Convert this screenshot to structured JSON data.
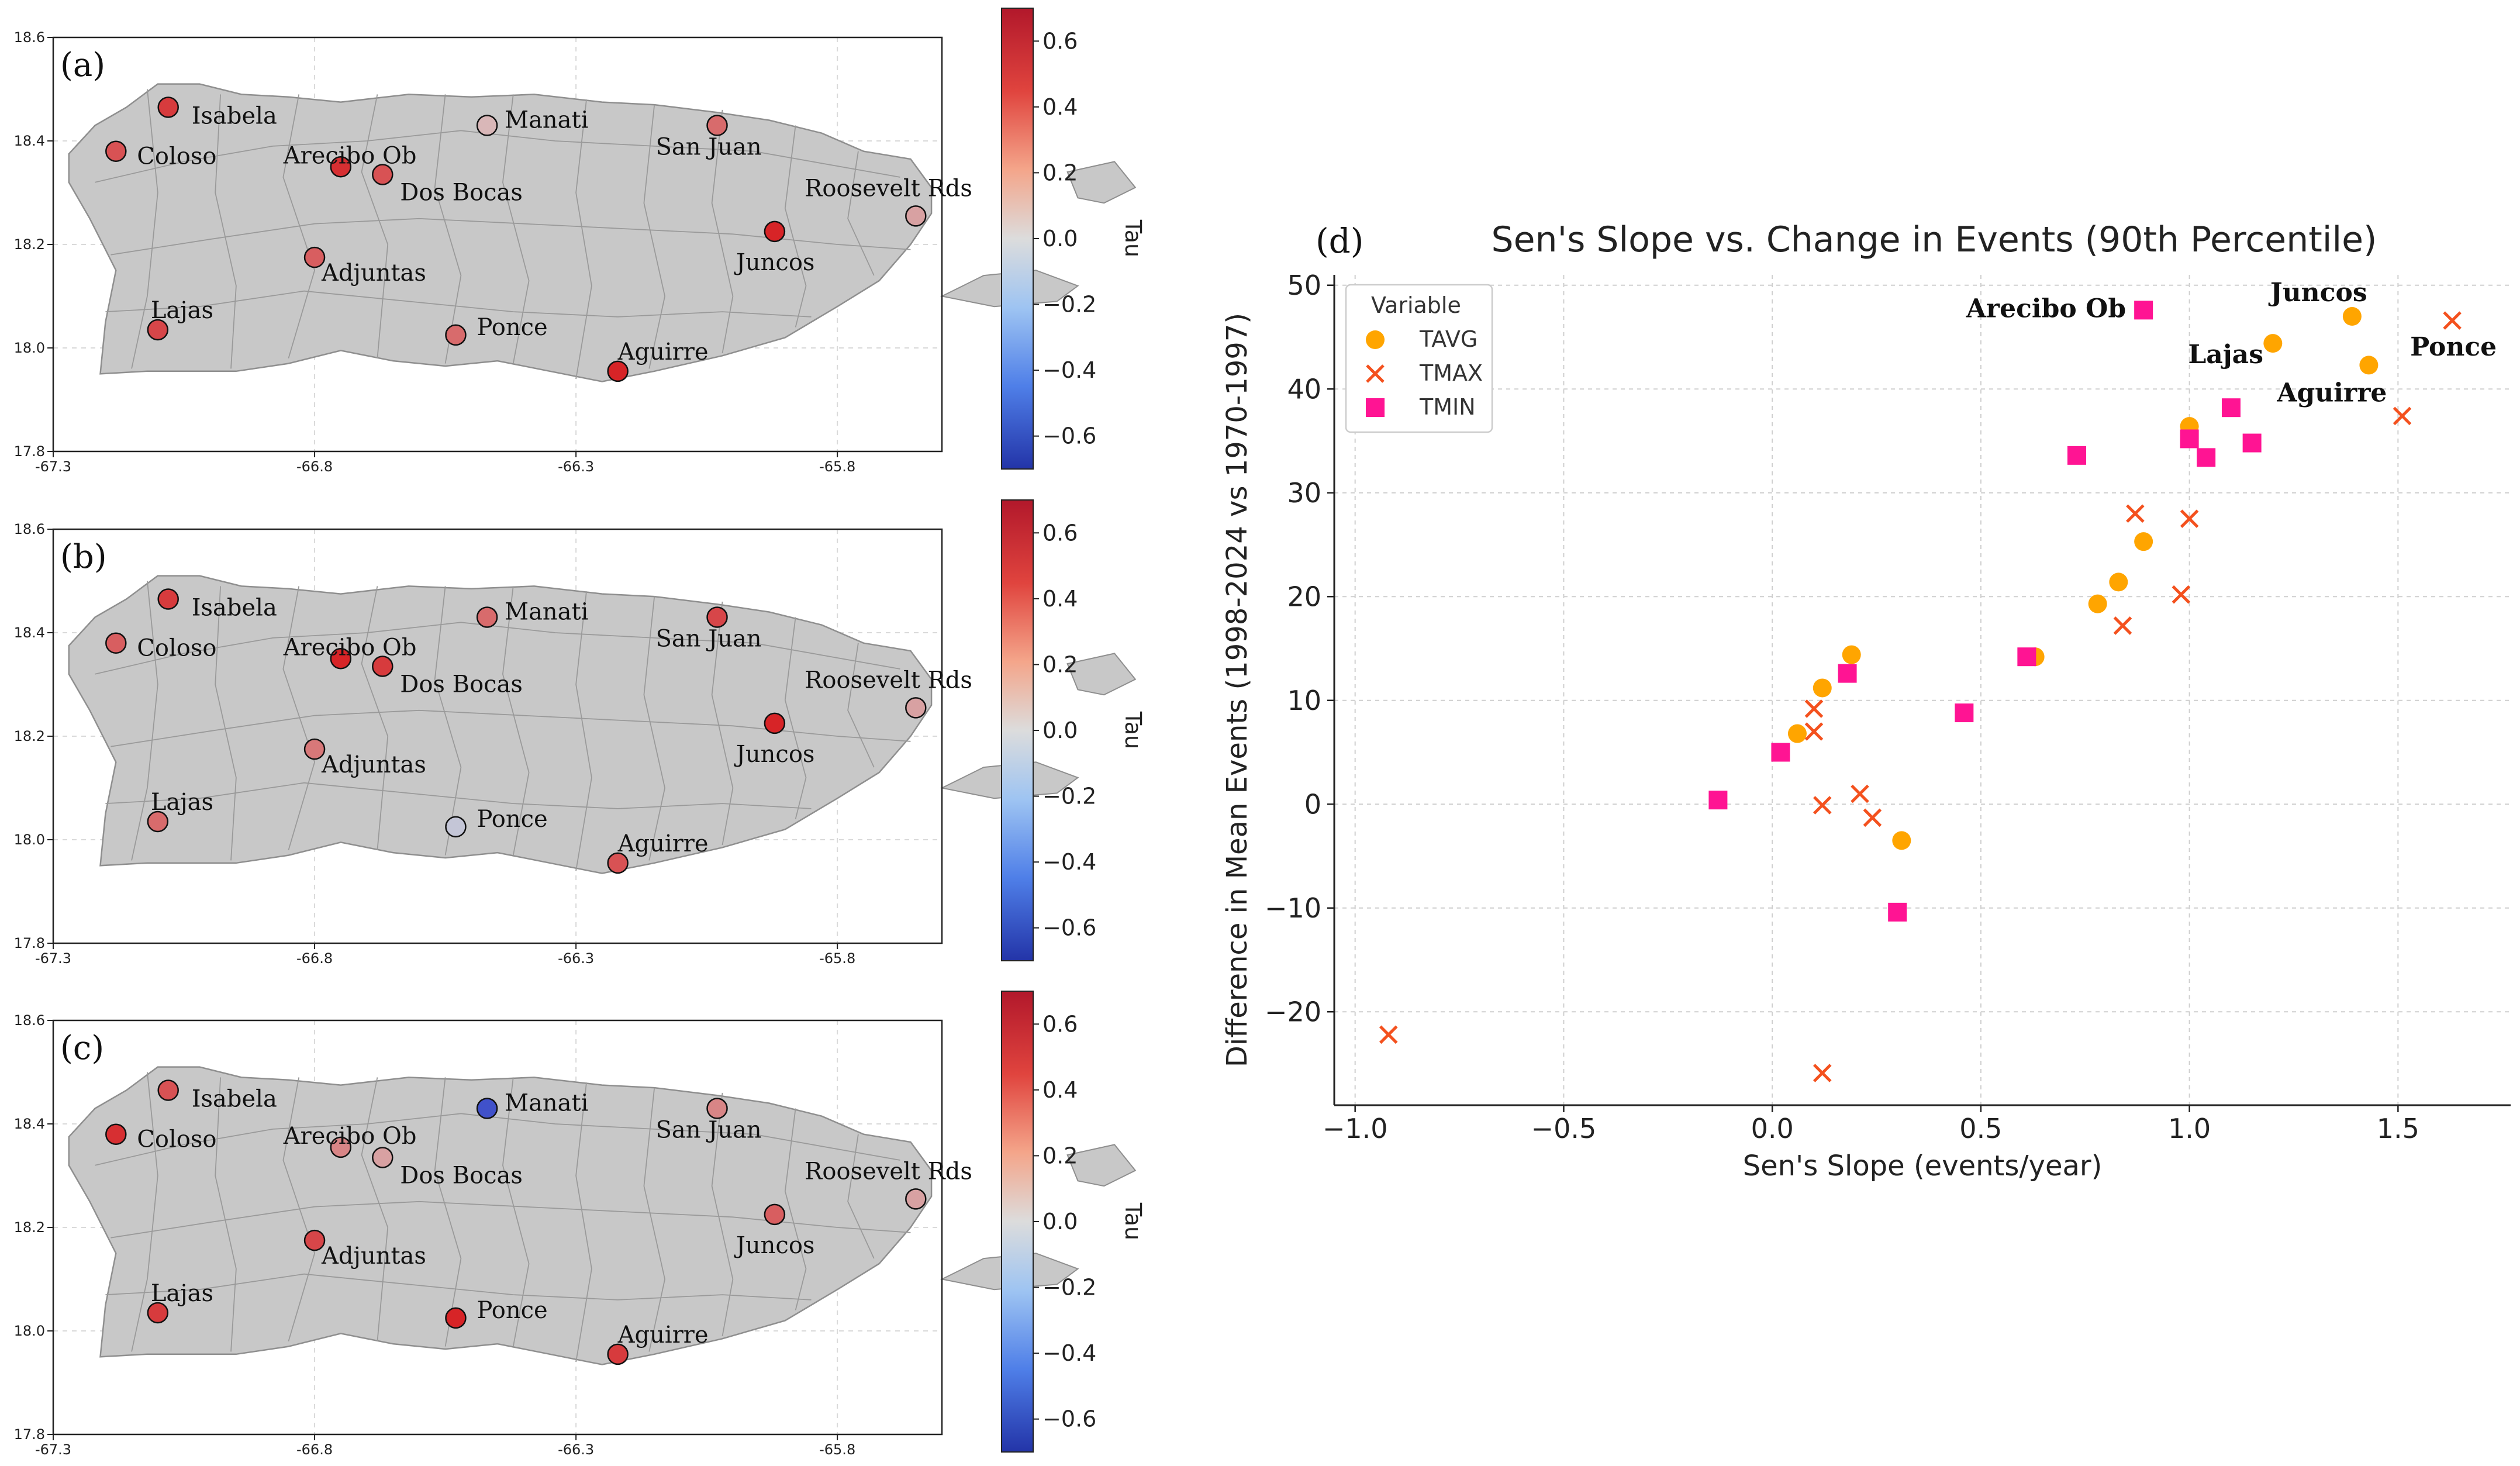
{
  "maps": {
    "lon_ticks": [
      "-67.3",
      "-66.8",
      "-66.3",
      "-65.8"
    ],
    "lat_ticks": [
      "17.8",
      "18.0",
      "18.2",
      "18.4",
      "18.6"
    ],
    "lon_range": [
      -67.3,
      -65.6
    ],
    "lat_range": [
      17.8,
      18.6
    ],
    "colorbar": {
      "label": "Tau",
      "ticks": [
        "0.6",
        "0.4",
        "0.2",
        "0.0",
        "−0.2",
        "−0.4",
        "−0.6"
      ],
      "range": [
        -0.7,
        0.7
      ],
      "colors": {
        "pos": "#d7191c",
        "mid": "#d9d9d9",
        "neg": "#2c3fc8"
      }
    },
    "panels": [
      {
        "label": "(a)",
        "stations": [
          {
            "name": "Isabela",
            "lon": -67.08,
            "lat": 18.465,
            "tau": 0.55
          },
          {
            "name": "Coloso",
            "lon": -67.18,
            "lat": 18.38,
            "tau": 0.45
          },
          {
            "name": "Arecibo Ob",
            "lon": -66.75,
            "lat": 18.35,
            "tau": 0.6
          },
          {
            "name": "Dos Bocas",
            "lon": -66.67,
            "lat": 18.335,
            "tau": 0.45
          },
          {
            "name": "Manati",
            "lon": -66.47,
            "lat": 18.43,
            "tau": 0.08
          },
          {
            "name": "San Juan",
            "lon": -66.03,
            "lat": 18.43,
            "tau": 0.35
          },
          {
            "name": "Roosevelt Rds",
            "lon": -65.65,
            "lat": 18.255,
            "tau": 0.15
          },
          {
            "name": "Juncos",
            "lon": -65.92,
            "lat": 18.225,
            "tau": 0.65
          },
          {
            "name": "Adjuntas",
            "lon": -66.8,
            "lat": 18.175,
            "tau": 0.4
          },
          {
            "name": "Lajas",
            "lon": -67.1,
            "lat": 18.035,
            "tau": 0.5
          },
          {
            "name": "Ponce",
            "lon": -66.53,
            "lat": 18.025,
            "tau": 0.35
          },
          {
            "name": "Aguirre",
            "lon": -66.22,
            "lat": 17.955,
            "tau": 0.65
          }
        ]
      },
      {
        "label": "(b)",
        "stations": [
          {
            "name": "Isabela",
            "lon": -67.08,
            "lat": 18.465,
            "tau": 0.55
          },
          {
            "name": "Coloso",
            "lon": -67.18,
            "lat": 18.38,
            "tau": 0.4
          },
          {
            "name": "Arecibo Ob",
            "lon": -66.75,
            "lat": 18.35,
            "tau": 0.65
          },
          {
            "name": "Dos Bocas",
            "lon": -66.67,
            "lat": 18.335,
            "tau": 0.55
          },
          {
            "name": "Manati",
            "lon": -66.47,
            "lat": 18.43,
            "tau": 0.35
          },
          {
            "name": "San Juan",
            "lon": -66.03,
            "lat": 18.43,
            "tau": 0.5
          },
          {
            "name": "Roosevelt Rds",
            "lon": -65.65,
            "lat": 18.255,
            "tau": 0.15
          },
          {
            "name": "Juncos",
            "lon": -65.92,
            "lat": 18.225,
            "tau": 0.65
          },
          {
            "name": "Adjuntas",
            "lon": -66.8,
            "lat": 18.175,
            "tau": 0.3
          },
          {
            "name": "Lajas",
            "lon": -67.1,
            "lat": 18.035,
            "tau": 0.35
          },
          {
            "name": "Ponce",
            "lon": -66.53,
            "lat": 18.025,
            "tau": -0.05
          },
          {
            "name": "Aguirre",
            "lon": -66.22,
            "lat": 17.955,
            "tau": 0.45
          }
        ]
      },
      {
        "label": "(c)",
        "stations": [
          {
            "name": "Isabela",
            "lon": -67.08,
            "lat": 18.465,
            "tau": 0.45
          },
          {
            "name": "Coloso",
            "lon": -67.18,
            "lat": 18.38,
            "tau": 0.6
          },
          {
            "name": "Arecibo Ob",
            "lon": -66.75,
            "lat": 18.355,
            "tau": 0.25
          },
          {
            "name": "Dos Bocas",
            "lon": -66.67,
            "lat": 18.335,
            "tau": 0.15
          },
          {
            "name": "Manati",
            "lon": -66.47,
            "lat": 18.43,
            "tau": -0.6
          },
          {
            "name": "San Juan",
            "lon": -66.03,
            "lat": 18.43,
            "tau": 0.25
          },
          {
            "name": "Roosevelt Rds",
            "lon": -65.65,
            "lat": 18.255,
            "tau": 0.15
          },
          {
            "name": "Juncos",
            "lon": -65.92,
            "lat": 18.225,
            "tau": 0.4
          },
          {
            "name": "Adjuntas",
            "lon": -66.8,
            "lat": 18.175,
            "tau": 0.5
          },
          {
            "name": "Lajas",
            "lon": -67.1,
            "lat": 18.035,
            "tau": 0.55
          },
          {
            "name": "Ponce",
            "lon": -66.53,
            "lat": 18.025,
            "tau": 0.65
          },
          {
            "name": "Aguirre",
            "lon": -66.22,
            "lat": 17.955,
            "tau": 0.55
          }
        ]
      }
    ]
  },
  "chart_data": {
    "type": "scatter",
    "panel_label": "(d)",
    "title": "Sen's Slope vs. Change in Events (90th Percentile)",
    "xlabel": "Sen's Slope (events/year)",
    "ylabel": "Difference in Mean Events (1998-2024 vs 1970-1997)",
    "xlim": [
      -1.05,
      1.77
    ],
    "ylim": [
      -29,
      51
    ],
    "xticks": [
      -1.0,
      -0.5,
      0.0,
      0.5,
      1.0,
      1.5
    ],
    "xtick_labels": [
      "−1.0",
      "−0.5",
      "0.0",
      "0.5",
      "1.0",
      "1.5"
    ],
    "yticks": [
      -20,
      -10,
      0,
      10,
      20,
      30,
      40,
      50
    ],
    "ytick_labels": [
      "−20",
      "−10",
      "0",
      "10",
      "20",
      "30",
      "40",
      "50"
    ],
    "grid": true,
    "legend": {
      "title": "Variable",
      "position": "top-left"
    },
    "series": [
      {
        "name": "TAVG",
        "marker": "circle",
        "color": "#ffa500",
        "points": [
          [
            0.06,
            6.8
          ],
          [
            0.12,
            11.2
          ],
          [
            0.19,
            14.4
          ],
          [
            0.31,
            -3.5
          ],
          [
            0.63,
            14.2
          ],
          [
            0.78,
            19.3
          ],
          [
            0.83,
            21.4
          ],
          [
            0.89,
            25.3
          ],
          [
            1.0,
            36.4
          ],
          [
            1.2,
            44.4
          ],
          [
            1.39,
            47.0
          ],
          [
            1.43,
            42.3
          ]
        ]
      },
      {
        "name": "TMAX",
        "marker": "x",
        "color": "#f4511e",
        "points": [
          [
            -0.92,
            -22.2
          ],
          [
            0.1,
            9.2
          ],
          [
            0.1,
            7.0
          ],
          [
            0.12,
            -0.1
          ],
          [
            0.12,
            -25.9
          ],
          [
            0.21,
            1.0
          ],
          [
            0.24,
            -1.3
          ],
          [
            0.84,
            17.2
          ],
          [
            0.87,
            28.0
          ],
          [
            0.98,
            20.2
          ],
          [
            1.0,
            27.5
          ],
          [
            1.51,
            37.4
          ],
          [
            1.63,
            46.6
          ]
        ]
      },
      {
        "name": "TMIN",
        "marker": "square",
        "color": "#ff1493",
        "points": [
          [
            -0.13,
            0.4
          ],
          [
            0.02,
            5.0
          ],
          [
            0.18,
            12.6
          ],
          [
            0.3,
            -10.4
          ],
          [
            0.46,
            8.8
          ],
          [
            0.61,
            14.2
          ],
          [
            0.73,
            33.6
          ],
          [
            0.89,
            47.6
          ],
          [
            1.0,
            35.2
          ],
          [
            1.04,
            33.4
          ],
          [
            1.1,
            38.2
          ],
          [
            1.15,
            34.8
          ]
        ]
      }
    ],
    "annotations": [
      {
        "text": "Juncos",
        "x": 1.39,
        "y": 47.0
      },
      {
        "text": "Lajas",
        "x": 1.2,
        "y": 44.4
      },
      {
        "text": "Aguirre",
        "x": 1.43,
        "y": 42.3
      },
      {
        "text": "Ponce",
        "x": 1.63,
        "y": 46.6
      },
      {
        "text": "Arecibo Ob",
        "x": 0.89,
        "y": 47.6
      }
    ]
  }
}
